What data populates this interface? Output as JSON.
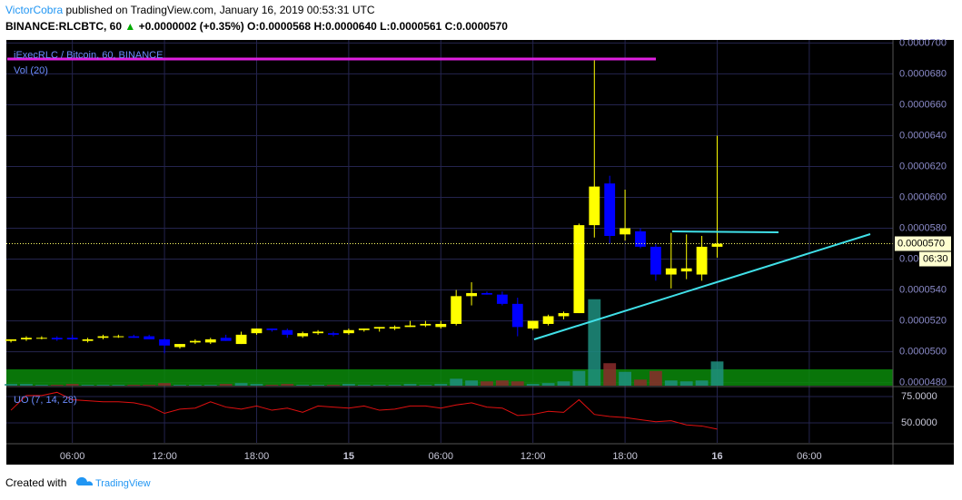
{
  "header": {
    "author": "VictorCobra",
    "published": "published on TradingView.com, January 16, 2019 00:53:31 UTC",
    "symbol": "BINANCE:RLCBTC, 60",
    "change": "+0.0000002 (+0.35%)",
    "ohlc": [
      "O:0.0000568",
      "H:0.0000640",
      "L:0.0000561",
      "C:0.0000570"
    ]
  },
  "footer": {
    "created": "Created with",
    "brand": "TradingView"
  },
  "chart_data": {
    "type": "candlestick",
    "title": "iExecRLC / Bitcoin, 60, BINANCE",
    "volume_label": "Vol (20)",
    "indicator_label": "UO (7, 14, 28)",
    "up_color": "#ffff00",
    "down_color": "#0000ff",
    "volume_up_color": "#1f8f7f",
    "volume_down_color": "#8b2c2c",
    "indicator_color": "#e01010",
    "grid": true,
    "xlim": [
      -0.3,
      57.45
    ],
    "xticks": [
      {
        "value": 4,
        "label": "06:00"
      },
      {
        "value": 10,
        "label": "12:00"
      },
      {
        "value": 16,
        "label": "18:00"
      },
      {
        "value": 22,
        "label": "15"
      },
      {
        "value": 28,
        "label": "06:00"
      },
      {
        "value": 34,
        "label": "12:00"
      },
      {
        "value": 40,
        "label": "18:00"
      },
      {
        "value": 46,
        "label": "16"
      },
      {
        "value": 52,
        "label": "06:00"
      }
    ],
    "ylim": [
      4.78e-05,
      7.02e-05
    ],
    "yticks": [
      {
        "value": 7e-05,
        "label": "0.0000700"
      },
      {
        "value": 6.8e-05,
        "label": "0.0000680"
      },
      {
        "value": 6.6e-05,
        "label": "0.0000660"
      },
      {
        "value": 6.4e-05,
        "label": "0.0000640"
      },
      {
        "value": 6.2e-05,
        "label": "0.0000620"
      },
      {
        "value": 6e-05,
        "label": "0.0000600"
      },
      {
        "value": 5.8e-05,
        "label": "0.0000580"
      },
      {
        "value": 5.6e-05,
        "label": "0.0000560"
      },
      {
        "value": 5.4e-05,
        "label": "0.0000540"
      },
      {
        "value": 5.2e-05,
        "label": "0.0000520"
      },
      {
        "value": 5e-05,
        "label": "0.0000500"
      },
      {
        "value": 4.8e-05,
        "label": "0.0000480"
      }
    ],
    "last_price": {
      "value": 5.7e-05,
      "label": "0.0000570"
    },
    "countdown": "06:30",
    "open": [
      5.07e-05,
      5.08e-05,
      5.09e-05,
      5.09e-05,
      5.09e-05,
      5.07e-05,
      5.09e-05,
      5.1e-05,
      5.1e-05,
      5.1e-05,
      5.08e-05,
      5.03e-05,
      5.06e-05,
      5.06e-05,
      5.09e-05,
      5.05e-05,
      5.12e-05,
      5.15e-05,
      5.14e-05,
      5.1e-05,
      5.12e-05,
      5.12e-05,
      5.12e-05,
      5.14e-05,
      5.15e-05,
      5.15e-05,
      5.16e-05,
      5.17e-05,
      5.16e-05,
      5.18e-05,
      5.36e-05,
      5.38e-05,
      5.37e-05,
      5.31e-05,
      5.15e-05,
      5.18e-05,
      5.23e-05,
      5.25e-05,
      5.82e-05,
      6.09e-05,
      5.76e-05,
      5.78e-05,
      5.68e-05,
      5.5e-05,
      5.52e-05,
      5.5e-05,
      5.68e-05
    ],
    "high": [
      5.08e-05,
      5.1e-05,
      5.1e-05,
      5.1e-05,
      5.11e-05,
      5.09e-05,
      5.11e-05,
      5.11e-05,
      5.11e-05,
      5.11e-05,
      5.09e-05,
      5.05e-05,
      5.08e-05,
      5.09e-05,
      5.11e-05,
      5.13e-05,
      5.15e-05,
      5.15e-05,
      5.15e-05,
      5.13e-05,
      5.14e-05,
      5.13e-05,
      5.15e-05,
      5.15e-05,
      5.16e-05,
      5.17e-05,
      5.2e-05,
      5.2e-05,
      5.2e-05,
      5.4e-05,
      5.45e-05,
      5.39e-05,
      5.39e-05,
      5.35e-05,
      5.2e-05,
      5.24e-05,
      5.26e-05,
      5.83e-05,
      6.9e-05,
      6.14e-05,
      6.05e-05,
      5.8e-05,
      5.7e-05,
      5.77e-05,
      5.76e-05,
      5.75e-05,
      6.4e-05
    ],
    "low": [
      5.06e-05,
      5.07e-05,
      5.08e-05,
      5.07e-05,
      5.08e-05,
      5.06e-05,
      5.08e-05,
      5.09e-05,
      5.09e-05,
      5.08e-05,
      4.99e-05,
      5.02e-05,
      5.05e-05,
      5.05e-05,
      5.07e-05,
      5.05e-05,
      5.11e-05,
      5.13e-05,
      5.09e-05,
      5.09e-05,
      5.11e-05,
      5.1e-05,
      5.11e-05,
      5.13e-05,
      5.13e-05,
      5.14e-05,
      5.16e-05,
      5.16e-05,
      5.15e-05,
      5.17e-05,
      5.3e-05,
      5.37e-05,
      5.3e-05,
      5.1e-05,
      5.14e-05,
      5.17e-05,
      5.21e-05,
      5.25e-05,
      5.74e-05,
      5.7e-05,
      5.72e-05,
      5.67e-05,
      5.46e-05,
      5.41e-05,
      5.47e-05,
      5.46e-05,
      5.61e-05
    ],
    "close": [
      5.08e-05,
      5.09e-05,
      5.09e-05,
      5.08e-05,
      5.08e-05,
      5.08e-05,
      5.1e-05,
      5.1e-05,
      5.09e-05,
      5.08e-05,
      5.04e-05,
      5.05e-05,
      5.07e-05,
      5.08e-05,
      5.07e-05,
      5.11e-05,
      5.15e-05,
      5.14e-05,
      5.11e-05,
      5.12e-05,
      5.13e-05,
      5.11e-05,
      5.14e-05,
      5.15e-05,
      5.16e-05,
      5.16e-05,
      5.17e-05,
      5.18e-05,
      5.18e-05,
      5.36e-05,
      5.38e-05,
      5.37e-05,
      5.31e-05,
      5.16e-05,
      5.2e-05,
      5.23e-05,
      5.25e-05,
      5.82e-05,
      6.07e-05,
      5.75e-05,
      5.8e-05,
      5.68e-05,
      5.5e-05,
      5.54e-05,
      5.54e-05,
      5.68e-05,
      5.7e-05
    ],
    "volume_lim": [
      0,
      400
    ],
    "volume": [
      2,
      2,
      1,
      1,
      2,
      1,
      1,
      1,
      1,
      1,
      3,
      1,
      1,
      1,
      2,
      3,
      2,
      1,
      2,
      1,
      1,
      1,
      2,
      1,
      1,
      1,
      2,
      1,
      2,
      8,
      6,
      5,
      6,
      5,
      2,
      3,
      5,
      17,
      100,
      26,
      16,
      7,
      17,
      6,
      5,
      6,
      28
    ],
    "indicator_lim": [
      31,
      83.6
    ],
    "indicator_ticks": [
      {
        "value": 75,
        "label": "75.0000"
      },
      {
        "value": 50,
        "label": "50.0000"
      }
    ],
    "indicator": [
      62,
      76,
      76,
      79,
      72,
      71,
      70,
      70,
      69,
      66,
      59,
      63,
      64,
      70,
      65,
      63,
      66,
      62,
      64,
      60,
      66,
      65,
      64,
      66,
      62,
      63,
      66,
      66,
      64,
      67,
      69,
      65,
      64,
      57,
      58,
      61,
      60,
      72,
      58,
      56,
      55,
      53,
      51,
      52,
      48,
      47,
      44
    ]
  }
}
